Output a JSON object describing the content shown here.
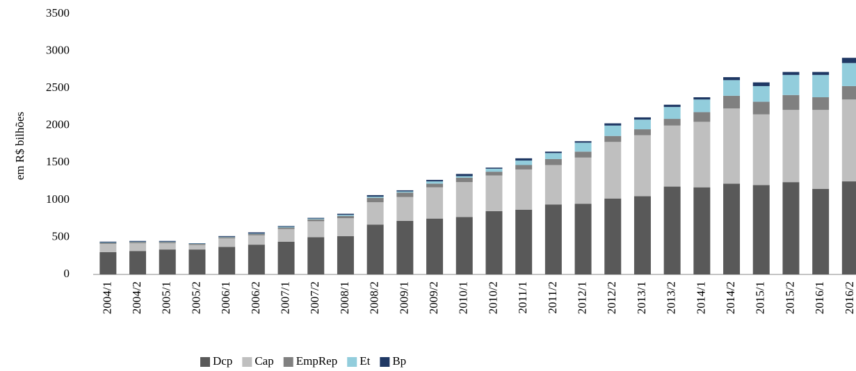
{
  "chart_data": {
    "type": "stacked_bar",
    "y_label": "em R$ bilhões",
    "categories": [
      "2004/1",
      "2004/2",
      "2005/1",
      "2005/2",
      "2006/1",
      "2006/2",
      "2007/1",
      "2007/2",
      "2008/1",
      "2008/2",
      "2009/1",
      "2009/2",
      "2010/1",
      "2010/2",
      "2011/1",
      "2011/2",
      "2012/1",
      "2012/2",
      "2013/1",
      "2013/2",
      "2014/1",
      "2014/2",
      "2015/1",
      "2015/2",
      "2016/1",
      "2016/2"
    ],
    "series": [
      {
        "name": "Dcp",
        "color": "#595959",
        "values": [
          300,
          315,
          335,
          335,
          370,
          400,
          440,
          500,
          515,
          670,
          720,
          750,
          770,
          850,
          870,
          940,
          950,
          1020,
          1050,
          1180,
          1170,
          1220,
          1200,
          1240,
          1150,
          1250
        ]
      },
      {
        "name": "Cap",
        "color": "#bfbfbf",
        "values": [
          110,
          105,
          85,
          60,
          115,
          125,
          170,
          215,
          240,
          300,
          320,
          420,
          470,
          480,
          540,
          530,
          620,
          760,
          820,
          820,
          880,
          1010,
          950,
          970,
          1060,
          1100
        ]
      },
      {
        "name": "EmpRep",
        "color": "#808080",
        "values": [
          15,
          15,
          15,
          15,
          15,
          20,
          20,
          25,
          30,
          60,
          60,
          50,
          60,
          50,
          60,
          80,
          80,
          80,
          80,
          90,
          130,
          170,
          170,
          200,
          170,
          180
        ]
      },
      {
        "name": "Et",
        "color": "#92cddc",
        "values": [
          5,
          5,
          5,
          5,
          5,
          5,
          10,
          10,
          15,
          15,
          15,
          30,
          20,
          40,
          60,
          80,
          120,
          140,
          130,
          160,
          170,
          210,
          210,
          270,
          300,
          310
        ]
      },
      {
        "name": "Bp",
        "color": "#1f3864",
        "values": [
          10,
          10,
          10,
          5,
          10,
          15,
          10,
          10,
          15,
          20,
          15,
          20,
          30,
          15,
          30,
          20,
          20,
          30,
          30,
          30,
          30,
          40,
          50,
          40,
          40,
          70
        ]
      }
    ],
    "ylim": [
      0,
      3500
    ],
    "yticks": [
      0,
      500,
      1000,
      1500,
      2000,
      2500,
      3000,
      3500
    ],
    "legend": "bottom"
  }
}
